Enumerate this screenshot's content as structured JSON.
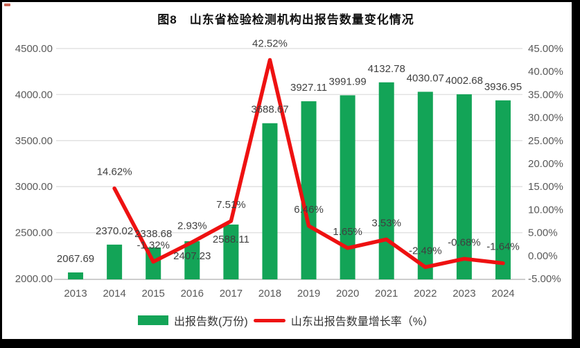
{
  "title": "图8　山东省检验检测机构出报告数量变化情况",
  "chart_data": {
    "type": "bar+line",
    "categories": [
      "2013",
      "2014",
      "2015",
      "2016",
      "2017",
      "2018",
      "2019",
      "2020",
      "2021",
      "2022",
      "2023",
      "2024"
    ],
    "series": [
      {
        "name": "出报告数(万份)",
        "type": "bar",
        "axis": "left",
        "color": "#13a457",
        "values": [
          2067.69,
          2370.02,
          2338.68,
          2407.23,
          2588.11,
          3688.67,
          3927.11,
          3991.99,
          4132.78,
          4030.07,
          4002.68,
          3936.95
        ],
        "labels": [
          "2067.69",
          "2370.02",
          "2338.68",
          "2407.23",
          "2588.11",
          "3688.67",
          "3927.11",
          "3991.99",
          "4132.78",
          "4030.07",
          "4002.68",
          "3936.95"
        ]
      },
      {
        "name": "山东出报告数量增长率（%）",
        "type": "line",
        "axis": "right",
        "color": "#ee1111",
        "values": [
          null,
          14.62,
          -1.32,
          2.93,
          7.51,
          42.52,
          6.46,
          1.65,
          3.53,
          -2.49,
          -0.68,
          -1.64
        ],
        "labels": [
          null,
          "14.62%",
          "-1.32%",
          "2.93%",
          "7.51%",
          "42.52%",
          "6.46%",
          "1.65%",
          "3.53%",
          "-2.49%",
          "-0.68%",
          "-1.64%"
        ]
      }
    ],
    "left_axis": {
      "min": 2000,
      "max": 4500,
      "step": 500,
      "ticks": [
        "2000.00",
        "2500.00",
        "3000.00",
        "3500.00",
        "4000.00",
        "4500.00"
      ]
    },
    "right_axis": {
      "min": -5,
      "max": 45,
      "step": 5,
      "ticks": [
        "-5.00%",
        "0.00%",
        "5.00%",
        "10.00%",
        "15.00%",
        "20.00%",
        "25.00%",
        "30.00%",
        "35.00%",
        "40.00%",
        "45.00%"
      ]
    },
    "legend": [
      {
        "label": "出报告数(万份)",
        "color": "#13a457",
        "type": "bar"
      },
      {
        "label": "山东出报告数量增长率（%）",
        "color": "#ee1111",
        "type": "line"
      }
    ],
    "grid": true,
    "legend_position": "bottom",
    "bar_label_placement": [
      "above",
      "above",
      "above",
      "below",
      "below",
      "above",
      "above",
      "above",
      "above",
      "above",
      "above",
      "above"
    ]
  }
}
